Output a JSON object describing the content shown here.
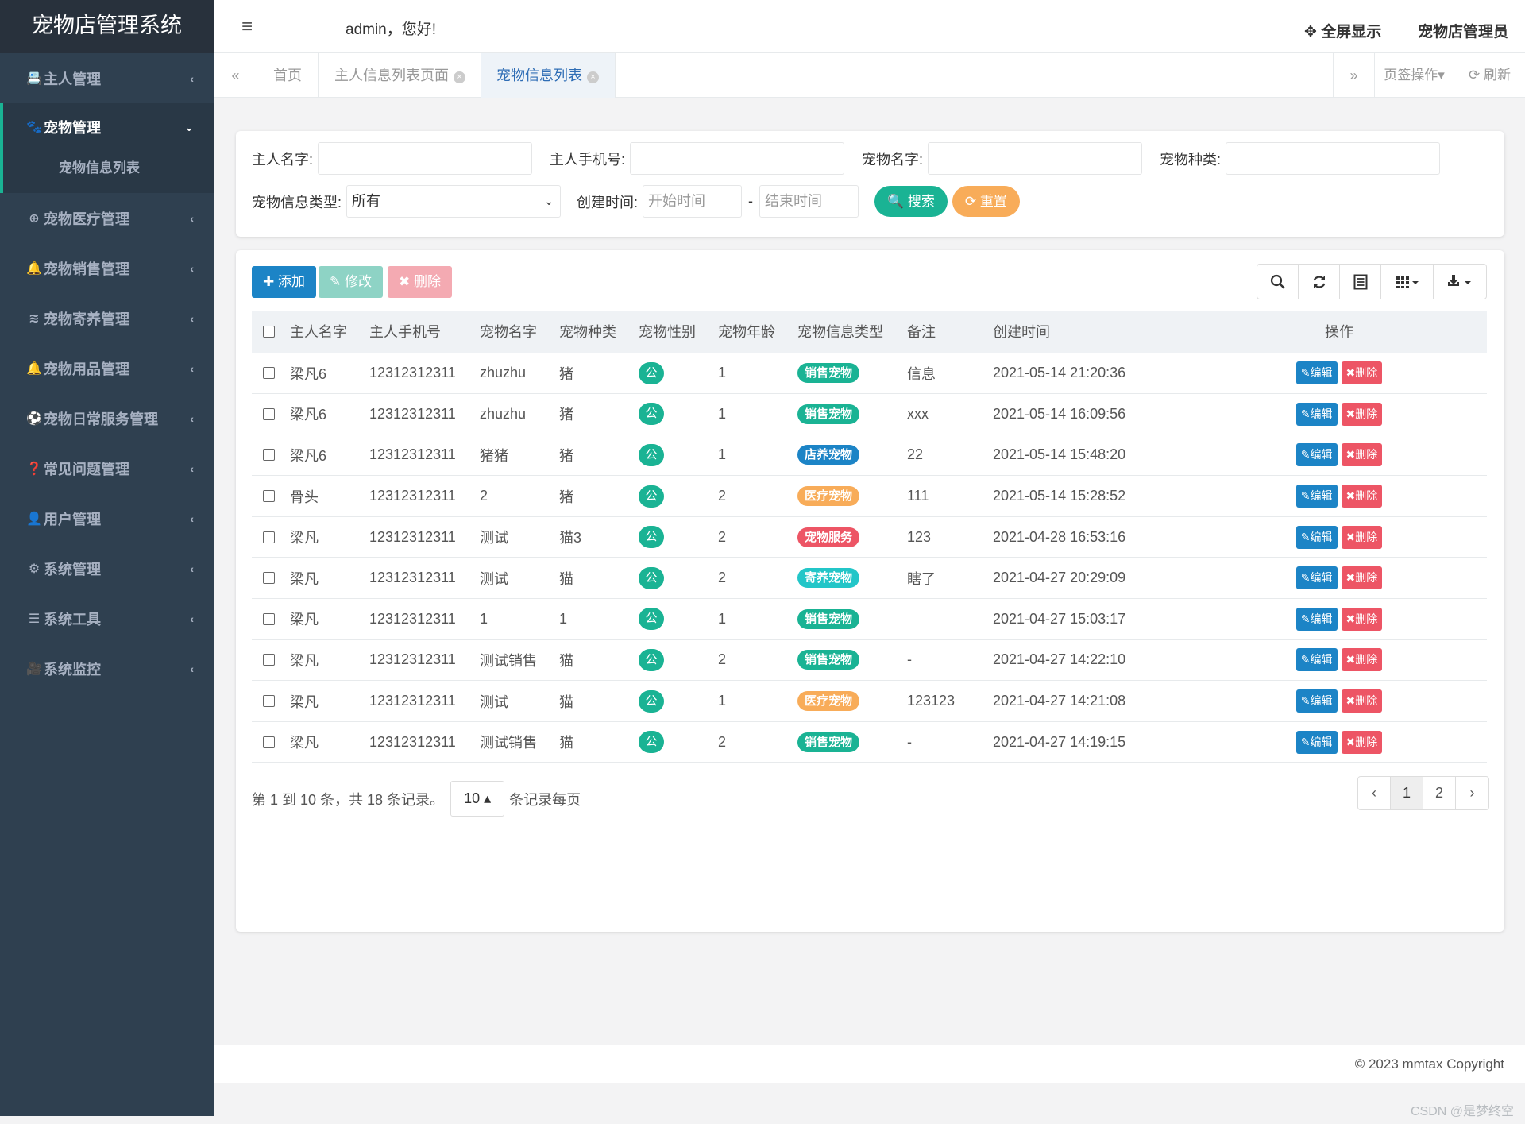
{
  "app_title": "宠物店管理系统",
  "sidebar": {
    "items": [
      {
        "icon": "📇",
        "label": "主人管理",
        "arrow": "‹"
      },
      {
        "icon": "🐾",
        "label": "宠物管理",
        "arrow": "⌄",
        "active": true,
        "children": [
          "宠物信息列表"
        ]
      },
      {
        "icon": "⊕",
        "label": "宠物医疗管理",
        "arrow": "‹"
      },
      {
        "icon": "🔔",
        "label": "宠物销售管理",
        "arrow": "‹"
      },
      {
        "icon": "≋",
        "label": "宠物寄养管理",
        "arrow": "‹"
      },
      {
        "icon": "🔔",
        "label": "宠物用品管理",
        "arrow": "‹"
      },
      {
        "icon": "⚽",
        "label": "宠物日常服务管理",
        "arrow": "‹"
      },
      {
        "icon": "❓",
        "label": "常见问题管理",
        "arrow": "‹"
      },
      {
        "icon": "👤",
        "label": "用户管理",
        "arrow": "‹"
      },
      {
        "icon": "⚙",
        "label": "系统管理",
        "arrow": "‹"
      },
      {
        "icon": "☰",
        "label": "系统工具",
        "arrow": "‹"
      },
      {
        "icon": "🎥",
        "label": "系统监控",
        "arrow": "‹"
      }
    ]
  },
  "topbar": {
    "menu_icon": "≡",
    "greeting": "admin，您好!",
    "fullscreen": "✥ 全屏显示",
    "user": "宠物店管理员"
  },
  "tabs": {
    "nav_left": "«",
    "items": [
      {
        "label": "首页",
        "closable": false
      },
      {
        "label": "主人信息列表页面",
        "closable": true
      },
      {
        "label": "宠物信息列表",
        "closable": true,
        "active": true
      }
    ],
    "close_glyph": "×",
    "nav_right": "»",
    "ops": "页签操作▾",
    "refresh": "⟳ 刷新"
  },
  "search": {
    "owner_name_label": "主人名字:",
    "owner_phone_label": "主人手机号:",
    "pet_name_label": "宠物名字:",
    "pet_species_label": "宠物种类:",
    "info_type_label": "宠物信息类型:",
    "info_type_value": "所有",
    "created_label": "创建时间:",
    "start_placeholder": "开始时间",
    "range_sep": "-",
    "end_placeholder": "结束时间",
    "search_btn": "🔍 搜索",
    "reset_btn": "⟳ 重置"
  },
  "toolbar": {
    "add": "✚ 添加",
    "edit": "✎ 修改",
    "delete": "✖ 删除",
    "tools": [
      "search-icon",
      "refresh-icon",
      "toggle-view-icon",
      "columns-icon",
      "export-icon"
    ]
  },
  "table": {
    "headers": [
      "主人名字",
      "主人手机号",
      "宠物名字",
      "宠物种类",
      "宠物性别",
      "宠物年龄",
      "宠物信息类型",
      "备注",
      "创建时间",
      "操作"
    ],
    "rows": [
      {
        "owner": "梁凡6",
        "phone": "12312312311",
        "pet": "zhuzhu",
        "species": "猪",
        "sex": "公",
        "age": "1",
        "type": "销售宠物",
        "type_color": "#1ab394",
        "note": "信息",
        "created": "2021-05-14 21:20:36"
      },
      {
        "owner": "梁凡6",
        "phone": "12312312311",
        "pet": "zhuzhu",
        "species": "猪",
        "sex": "公",
        "age": "1",
        "type": "销售宠物",
        "type_color": "#1ab394",
        "note": "xxx",
        "created": "2021-05-14 16:09:56"
      },
      {
        "owner": "梁凡6",
        "phone": "12312312311",
        "pet": "猪猪",
        "species": "猪",
        "sex": "公",
        "age": "1",
        "type": "店养宠物",
        "type_color": "#1c84c6",
        "note": "22",
        "created": "2021-05-14 15:48:20"
      },
      {
        "owner": "骨头",
        "phone": "12312312311",
        "pet": "2",
        "species": "猪",
        "sex": "公",
        "age": "2",
        "type": "医疗宠物",
        "type_color": "#f8ac59",
        "note": "111",
        "created": "2021-05-14 15:28:52"
      },
      {
        "owner": "梁凡",
        "phone": "12312312311",
        "pet": "测试",
        "species": "猫3",
        "sex": "公",
        "age": "2",
        "type": "宠物服务",
        "type_color": "#ed5565",
        "note": "123",
        "created": "2021-04-28 16:53:16"
      },
      {
        "owner": "梁凡",
        "phone": "12312312311",
        "pet": "测试",
        "species": "猫",
        "sex": "公",
        "age": "2",
        "type": "寄养宠物",
        "type_color": "#23c6c8",
        "note": "瞎了",
        "created": "2021-04-27 20:29:09"
      },
      {
        "owner": "梁凡",
        "phone": "12312312311",
        "pet": "1",
        "species": "1",
        "sex": "公",
        "age": "1",
        "type": "销售宠物",
        "type_color": "#1ab394",
        "note": "",
        "created": "2021-04-27 15:03:17"
      },
      {
        "owner": "梁凡",
        "phone": "12312312311",
        "pet": "测试销售",
        "species": "猫",
        "sex": "公",
        "age": "2",
        "type": "销售宠物",
        "type_color": "#1ab394",
        "note": "-",
        "created": "2021-04-27 14:22:10"
      },
      {
        "owner": "梁凡",
        "phone": "12312312311",
        "pet": "测试",
        "species": "猫",
        "sex": "公",
        "age": "1",
        "type": "医疗宠物",
        "type_color": "#f8ac59",
        "note": "123123",
        "created": "2021-04-27 14:21:08"
      },
      {
        "owner": "梁凡",
        "phone": "12312312311",
        "pet": "测试销售",
        "species": "猫",
        "sex": "公",
        "age": "2",
        "type": "销售宠物",
        "type_color": "#1ab394",
        "note": "-",
        "created": "2021-04-27 14:19:15"
      }
    ],
    "edit_label": "✎编辑",
    "delete_label": "✖删除"
  },
  "pagination": {
    "info": "第 1 到 10 条，共 18 条记录。",
    "page_size": "10 ▴",
    "per_page_suffix": "条记录每页",
    "prev": "‹",
    "pages": [
      "1",
      "2"
    ],
    "next": "›"
  },
  "footer": "© 2023 mmtax Copyright",
  "watermark": "CSDN @是梦终空",
  "colors": {
    "sidebar_bg": "#2f4050",
    "primary": "#1c84c6",
    "success": "#1ab394",
    "danger": "#ed5565",
    "warning": "#f8ac59",
    "info": "#23c6c8"
  }
}
